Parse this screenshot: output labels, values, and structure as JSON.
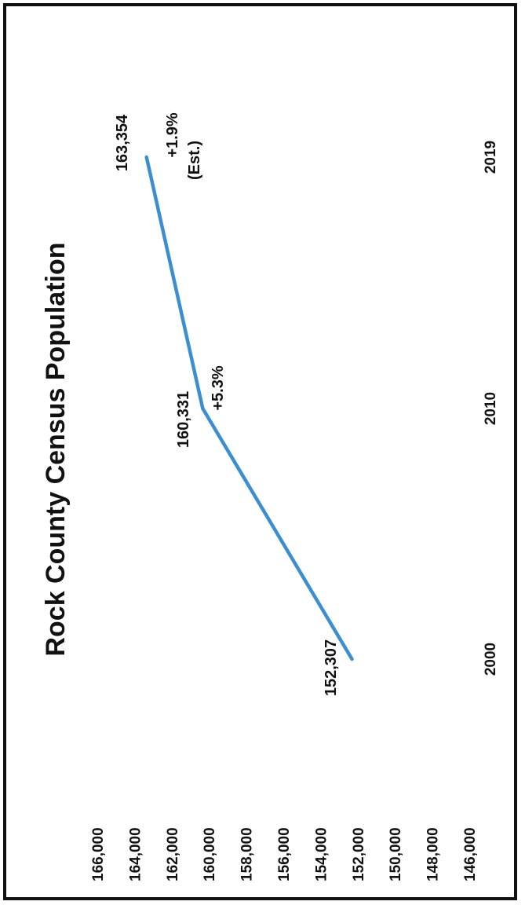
{
  "chart_data": {
    "type": "line",
    "title": "Rock County Census Population",
    "xlabel": "",
    "ylabel": "",
    "x": [
      "2000",
      "2010",
      "2019"
    ],
    "series": [
      {
        "values": [
          152307,
          160331,
          163354
        ],
        "color": "#3b8fd0"
      }
    ],
    "ylim": [
      146000,
      166000
    ],
    "y_ticks": [
      "146,000",
      "148,000",
      "150,000",
      "152,000",
      "154,000",
      "156,000",
      "158,000",
      "160,000",
      "162,000",
      "164,000",
      "166,000"
    ],
    "data_labels": [
      "152,307",
      "160,331",
      "163,354"
    ],
    "annotations": [
      "+5.3%",
      "+1.9%",
      "(Est.)"
    ],
    "orientation": "rotated 90 degrees counter-clockwise",
    "grid": false,
    "legend": "none"
  }
}
